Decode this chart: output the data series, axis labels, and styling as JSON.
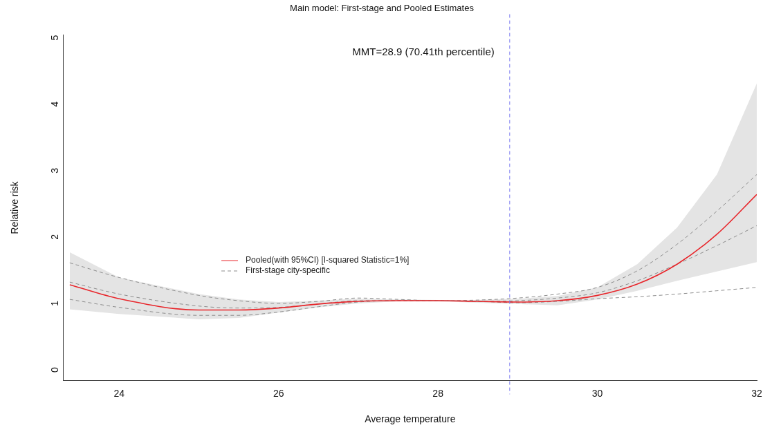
{
  "chart_data": {
    "type": "line",
    "title": "Main model: First-stage and Pooled Estimates",
    "xlabel": "Average temperature",
    "ylabel": "Relative risk",
    "x": [
      23.38,
      24,
      25,
      25.5,
      26,
      26.5,
      27,
      27.5,
      28,
      28.5,
      29,
      29.5,
      30,
      30.5,
      31,
      31.5,
      32
    ],
    "series": [
      {
        "name": "Pooled(with 95%CI) [I-squared Statistic=1%]",
        "color": "#e8262b",
        "values": [
          1.24,
          1.03,
          0.86,
          0.86,
          0.89,
          0.95,
          0.99,
          1.0,
          1.0,
          0.99,
          0.98,
          1.0,
          1.08,
          1.25,
          1.55,
          2.0,
          2.6
        ],
        "lower": [
          0.87,
          0.8,
          0.72,
          0.74,
          0.82,
          0.9,
          0.96,
          0.99,
          0.99,
          0.97,
          0.95,
          0.93,
          1.02,
          1.15,
          1.3,
          1.44,
          1.58
        ],
        "upper": [
          1.73,
          1.35,
          1.1,
          1.02,
          0.98,
          1.0,
          1.03,
          1.02,
          1.01,
          1.01,
          1.03,
          1.07,
          1.2,
          1.55,
          2.1,
          2.9,
          4.27
        ]
      },
      {
        "name": "First-stage city-specific",
        "color": "#8c8c8c",
        "line_style": "dashed",
        "values": [
          1.57,
          1.35,
          1.08,
          1.0,
          0.96,
          0.99,
          1.04,
          1.02,
          1.0,
          1.01,
          1.04,
          1.1,
          1.2,
          1.45,
          1.85,
          2.35,
          2.9
        ]
      },
      {
        "color": "#8c8c8c",
        "line_style": "dashed",
        "values": [
          1.28,
          1.1,
          0.92,
          0.89,
          0.9,
          0.95,
          1.0,
          1.0,
          1.0,
          0.99,
          1.0,
          1.04,
          1.12,
          1.3,
          1.55,
          1.83,
          2.13
        ]
      },
      {
        "color": "#8c8c8c",
        "line_style": "dashed",
        "values": [
          1.02,
          0.9,
          0.78,
          0.78,
          0.83,
          0.91,
          0.98,
          1.0,
          1.0,
          0.99,
          0.97,
          0.99,
          1.03,
          1.06,
          1.1,
          1.15,
          1.2
        ]
      }
    ],
    "xlim": [
      23.3,
      32
    ],
    "xticks": [
      24,
      26,
      28,
      30,
      32
    ],
    "ylim": [
      -0.2,
      5
    ],
    "yticks": [
      0,
      1,
      2,
      3,
      4,
      5
    ],
    "ref_lines": [
      {
        "axis": "x",
        "value": 28.9,
        "color": "#7b7bf0",
        "line_style": "dashed"
      }
    ],
    "annotations": [
      "MMT=28.9 (70.41th percentile)"
    ],
    "legend": "left",
    "grid": false,
    "marker": "none"
  }
}
